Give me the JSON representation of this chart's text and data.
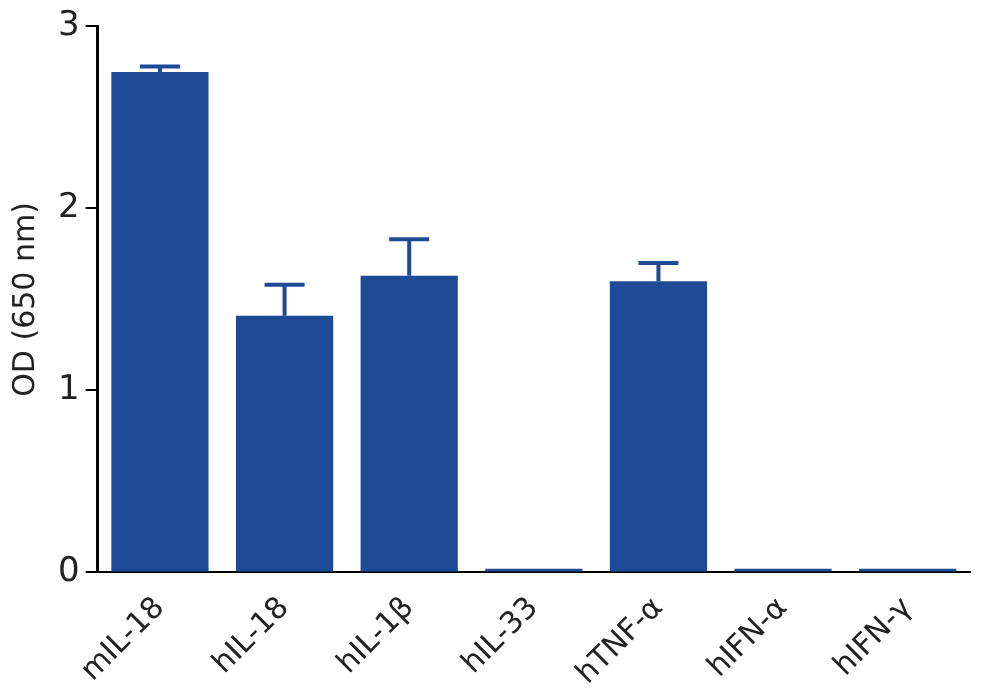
{
  "chart_data": {
    "type": "bar",
    "ylabel": "OD (650 nm)",
    "categories": [
      "mIL-18",
      "hIL-18",
      "hIL-1β",
      "hIL-33",
      "hTNF-α",
      "hIFN-α",
      "hIFN-γ"
    ],
    "values": [
      2.75,
      1.41,
      1.63,
      0.02,
      1.6,
      0.02,
      0.02
    ],
    "errors": [
      [
        2.75,
        2.78
      ],
      [
        1.41,
        1.58
      ],
      [
        1.63,
        1.83
      ],
      null,
      [
        1.6,
        1.7
      ],
      null,
      null
    ],
    "color": "#1f4a96",
    "ylim": [
      0,
      3
    ],
    "yticks": [
      0,
      1,
      2,
      3
    ],
    "grid": false,
    "legend": false
  }
}
